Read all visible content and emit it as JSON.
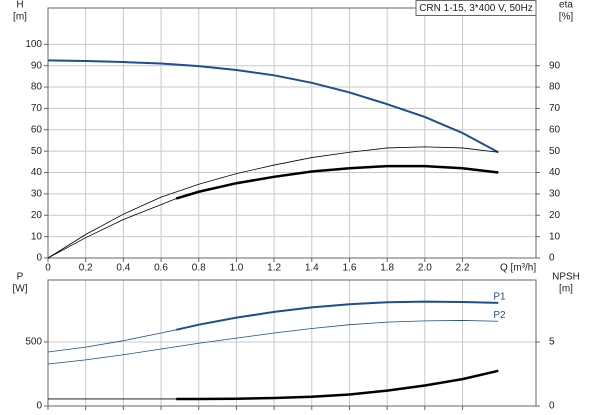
{
  "chart_data": [
    {
      "type": "line",
      "annotation": "CRN 1-15, 3*400 V, 50Hz",
      "ylabel": "H",
      "yunit": "[m]",
      "y2label": "eta",
      "y2unit": "[%]",
      "xlabel": "Q [m³/h]",
      "xlim": [
        0,
        2.59
      ],
      "xticks": [
        0,
        0.2,
        0.4,
        0.6,
        0.8,
        {
          "value": 1,
          "label": "1.0"
        },
        1.2,
        1.4,
        1.6,
        1.8,
        {
          "value": 2,
          "label": "2.0"
        },
        2.2
      ],
      "ylim": [
        0,
        117
      ],
      "yticks": [
        0,
        10,
        20,
        30,
        40,
        50,
        60,
        70,
        80,
        90,
        100
      ],
      "y2lim": [
        0,
        117
      ],
      "y2ticks": [
        0,
        10,
        20,
        30,
        40,
        50,
        60,
        70,
        80,
        90
      ],
      "grid": true,
      "series": [
        {
          "color": "#1f4e8c",
          "width": 2,
          "x": [
            0,
            0.2,
            0.4,
            0.6,
            0.8,
            1.0,
            1.2,
            1.4,
            1.6,
            1.8,
            2.0,
            2.2,
            2.39
          ],
          "values": [
            92.5,
            92.2,
            91.7,
            91,
            89.8,
            88,
            85.5,
            82,
            77.5,
            72,
            66,
            58.5,
            49.5
          ]
        },
        {
          "color": "#000000",
          "width": 0.8,
          "axis": "y2",
          "x": [
            0,
            0.2,
            0.4,
            0.6,
            0.8,
            1.0,
            1.2,
            1.4,
            1.6,
            1.8,
            2.0,
            2.2,
            2.39
          ],
          "values": [
            0,
            11,
            20.5,
            28.5,
            34.5,
            39.5,
            43.5,
            47,
            49.5,
            51.5,
            52,
            51.5,
            49.5
          ]
        },
        {
          "color": "#000000",
          "width": 0.8,
          "axis": "y2",
          "x": [
            0,
            0.2,
            0.4,
            0.6,
            0.68
          ],
          "values": [
            0,
            9.5,
            18,
            25,
            27.8
          ]
        },
        {
          "color": "#000000",
          "width": 2.5,
          "axis": "y2",
          "x": [
            0.68,
            0.8,
            1.0,
            1.2,
            1.4,
            1.6,
            1.8,
            2.0,
            2.2,
            2.39
          ],
          "values": [
            27.8,
            31,
            35,
            38,
            40.5,
            42,
            43,
            43,
            42,
            40
          ]
        }
      ]
    },
    {
      "type": "line",
      "ylabel": "P",
      "yunit": "[W]",
      "y2label": "NPSH",
      "y2unit": "[m]",
      "xlim": [
        0,
        2.59
      ],
      "xticks": [
        0,
        0.2,
        0.4,
        0.6,
        0.8,
        1,
        1.2,
        1.4,
        1.6,
        1.8,
        2,
        2.2
      ],
      "ylim": [
        0,
        984
      ],
      "yticks": [
        0,
        500
      ],
      "y2lim": [
        0,
        9.84
      ],
      "y2ticks": [
        0,
        5
      ],
      "grid": true,
      "series": [
        {
          "color": "#1f4e8c",
          "width": 0.8,
          "x": [
            0,
            0.2,
            0.4,
            0.6,
            0.68
          ],
          "values": [
            422,
            460,
            510,
            570,
            595
          ]
        },
        {
          "name": "P1",
          "color": "#1f4e8c",
          "width": 2,
          "x": [
            0.68,
            0.8,
            1.0,
            1.2,
            1.4,
            1.6,
            1.8,
            2.0,
            2.2,
            2.39
          ],
          "values": [
            595,
            635,
            690,
            735,
            770,
            795,
            810,
            815,
            812,
            805
          ]
        },
        {
          "name": "P2",
          "color": "#1f4e8c",
          "width": 0.8,
          "x": [
            0,
            0.2,
            0.4,
            0.6,
            0.8,
            1.0,
            1.2,
            1.4,
            1.6,
            1.8,
            2.0,
            2.2,
            2.39
          ],
          "values": [
            328,
            360,
            400,
            445,
            490,
            530,
            570,
            605,
            635,
            655,
            665,
            668,
            662
          ]
        },
        {
          "color": "#000000",
          "width": 0.8,
          "axis": "y2",
          "x": [
            0,
            0.68
          ],
          "values": [
            0.55,
            0.55
          ]
        },
        {
          "color": "#000000",
          "width": 2.5,
          "axis": "y2",
          "x": [
            0.68,
            0.8,
            1.0,
            1.2,
            1.4,
            1.6,
            1.8,
            2.0,
            2.2,
            2.39
          ],
          "values": [
            0.55,
            0.55,
            0.57,
            0.62,
            0.72,
            0.9,
            1.2,
            1.6,
            2.1,
            2.75
          ]
        }
      ]
    }
  ]
}
